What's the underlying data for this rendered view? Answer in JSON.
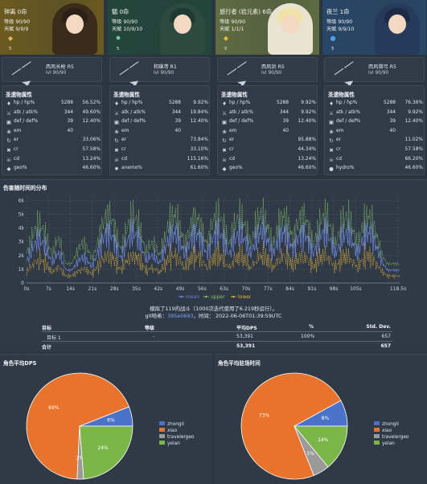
{
  "characters": [
    {
      "name": "钟离 0命",
      "level": "等级 90/90",
      "talent": "天赋 9/9/9",
      "constellation_count": "5",
      "element": "geo",
      "bg": "#6a5a1f",
      "hair": "#2a2018",
      "outfit": "#3a2b1a",
      "weapon": {
        "name": "西风长枪 R5",
        "level": "lvl 90/90"
      },
      "stats_title": "圣遗物属性",
      "stats": [
        {
          "icon": "hp-icon",
          "label": "hp / hp%",
          "v1": "5288",
          "v2": "56.52%"
        },
        {
          "icon": "atk-icon",
          "label": "atk / atk%",
          "v1": "344",
          "v2": "49.60%"
        },
        {
          "icon": "def-icon",
          "label": "def / def%",
          "v1": "39",
          "v2": "12.40%"
        },
        {
          "icon": "em-icon",
          "label": "em",
          "v1": "40",
          "v2": ""
        },
        {
          "icon": "er-icon",
          "label": "er",
          "v1": "",
          "v2": "33.06%"
        },
        {
          "icon": "cr-icon",
          "label": "cr",
          "v1": "",
          "v2": "57.58%"
        },
        {
          "icon": "cd-icon",
          "label": "cd",
          "v1": "",
          "v2": "13.24%"
        },
        {
          "icon": "geo-icon",
          "label": "geo%",
          "v1": "",
          "v2": "46.60%"
        }
      ]
    },
    {
      "name": "魈 0命",
      "level": "等级 90/90",
      "talent": "天赋 10/9/10",
      "constellation_count": "5",
      "element": "anemo",
      "bg": "#23463a",
      "hair": "#1d3a33",
      "outfit": "#2c4a3e",
      "weapon": {
        "name": "和璞鸢 R1",
        "level": "lvl 90/90"
      },
      "stats_title": "圣遗物属性",
      "stats": [
        {
          "icon": "hp-icon",
          "label": "hp / hp%",
          "v1": "5288",
          "v2": "9.92%"
        },
        {
          "icon": "atk-icon",
          "label": "atk / atk%",
          "v1": "344",
          "v2": "19.84%"
        },
        {
          "icon": "def-icon",
          "label": "def / def%",
          "v1": "39",
          "v2": "12.40%"
        },
        {
          "icon": "em-icon",
          "label": "em",
          "v1": "40",
          "v2": ""
        },
        {
          "icon": "er-icon",
          "label": "er",
          "v1": "",
          "v2": "73.84%"
        },
        {
          "icon": "cr-icon",
          "label": "cr",
          "v1": "",
          "v2": "33.10%"
        },
        {
          "icon": "cd-icon",
          "label": "cd",
          "v1": "",
          "v2": "115.16%"
        },
        {
          "icon": "anemo-icon",
          "label": "anemo%",
          "v1": "",
          "v2": "61.60%"
        }
      ]
    },
    {
      "name": "旅行者 (岩元素) 6命",
      "level": "等级 90/90",
      "talent": "天赋 1/1/1",
      "constellation_count": "5",
      "element": "geo",
      "bg": "#5f6b40",
      "hair": "#f1e2a6",
      "outfit": "#e9e3d2",
      "weapon": {
        "name": "西风剑 R5",
        "level": "lvl 90/90"
      },
      "stats_title": "圣遗物属性",
      "stats": [
        {
          "icon": "hp-icon",
          "label": "hp / hp%",
          "v1": "5288",
          "v2": "9.92%"
        },
        {
          "icon": "atk-icon",
          "label": "atk / atk%",
          "v1": "344",
          "v2": "9.92%"
        },
        {
          "icon": "def-icon",
          "label": "def / def%",
          "v1": "39",
          "v2": "12.40%"
        },
        {
          "icon": "em-icon",
          "label": "em",
          "v1": "40",
          "v2": ""
        },
        {
          "icon": "er-icon",
          "label": "er",
          "v1": "",
          "v2": "95.88%"
        },
        {
          "icon": "cr-icon",
          "label": "cr",
          "v1": "",
          "v2": "44.34%"
        },
        {
          "icon": "cd-icon",
          "label": "cd",
          "v1": "",
          "v2": "13.24%"
        },
        {
          "icon": "geo-icon",
          "label": "geo%",
          "v1": "",
          "v2": "46.60%"
        }
      ]
    },
    {
      "name": "夜兰 1命",
      "level": "等级 90/90",
      "talent": "天赋 9/9/10",
      "constellation_count": "5",
      "element": "hydro",
      "bg": "#284766",
      "hair": "#1d2a44",
      "outfit": "#263a5c",
      "weapon": {
        "name": "西风猎弓 R5",
        "level": "lvl 90/90"
      },
      "stats_title": "圣遗物属性",
      "stats": [
        {
          "icon": "hp-icon",
          "label": "hp / hp%",
          "v1": "5288",
          "v2": "76.36%"
        },
        {
          "icon": "atk-icon",
          "label": "atk / atk%",
          "v1": "344",
          "v2": "9.92%"
        },
        {
          "icon": "def-icon",
          "label": "def / def%",
          "v1": "39",
          "v2": "12.40%"
        },
        {
          "icon": "em-icon",
          "label": "em",
          "v1": "40",
          "v2": ""
        },
        {
          "icon": "er-icon",
          "label": "er",
          "v1": "",
          "v2": "11.02%"
        },
        {
          "icon": "cr-icon",
          "label": "cr",
          "v1": "",
          "v2": "57.58%"
        },
        {
          "icon": "cd-icon",
          "label": "cd",
          "v1": "",
          "v2": "66.20%"
        },
        {
          "icon": "hydro-icon",
          "label": "hydro%",
          "v1": "",
          "v2": "46.60%"
        }
      ]
    }
  ],
  "distribution": {
    "title": "伤害随时间的分布",
    "summary_line1": "模拟了119的战斗（1000次迭代使用了6.219秒运行）。",
    "summary_prefix": "git哈希：",
    "summary_hash": "395e0693",
    "summary_suffix": "，时间：  2022-06-06T01:39:59UTC"
  },
  "results_table": {
    "headers": [
      "目标",
      "等级",
      "平均DPS",
      "%",
      "Std. Dev."
    ],
    "rows": [
      [
        "目标 1",
        "",
        "53,391",
        "100%",
        "657"
      ]
    ],
    "total": [
      "合计",
      "",
      "53,391",
      "",
      "657"
    ]
  },
  "pie_dps": {
    "title": "角色平均DPS",
    "legend": [
      "zhongli",
      "xiao",
      "travelergeo",
      "yelan"
    ],
    "values": [
      6,
      69,
      2,
      24
    ],
    "labels": [
      "6%",
      "69%",
      "2%",
      "24%"
    ]
  },
  "pie_field": {
    "title": "角色平均驻场时间",
    "legend": [
      "zhongli",
      "xiao",
      "travelergeo",
      "yelan"
    ],
    "values": [
      8,
      73,
      5,
      14
    ],
    "labels": [
      "8%",
      "73%",
      "5%",
      "14%"
    ]
  },
  "colors": {
    "zhongli": "#4a72c8",
    "xiao": "#e8732c",
    "travelergeo": "#9a9a9a",
    "yelan": "#7ab648",
    "mean": "#6d82d6",
    "upper": "#8cc36e",
    "lower": "#e6b23c",
    "geo": "#e8b847",
    "anemo": "#6fd5b8",
    "hydro": "#4fa3f0"
  },
  "chart_data": {
    "type": "line",
    "title": "",
    "xlabel": "",
    "ylabel": "",
    "x_ticks": [
      "0s",
      "7s",
      "14s",
      "21s",
      "28s",
      "35s",
      "42s",
      "49s",
      "56s",
      "63s",
      "70s",
      "77s",
      "84s",
      "91s",
      "98s",
      "105s",
      "118.5s"
    ],
    "y_ticks": [
      "0",
      "1k",
      "2k",
      "3k",
      "4k",
      "5k",
      "6k"
    ],
    "ylim": [
      0,
      6200
    ],
    "xlim": [
      0,
      119
    ],
    "legend": [
      "mean",
      "upper",
      "lower"
    ],
    "legend_position": "below",
    "grid": true,
    "burst_centers": [
      4,
      10,
      18,
      26,
      34,
      40,
      47,
      54,
      61,
      68,
      75,
      82,
      88,
      95,
      102,
      109
    ],
    "burst_widths": [
      4,
      2,
      3,
      4,
      4,
      3,
      4,
      4,
      4,
      4,
      4,
      4,
      4,
      4,
      4,
      4
    ],
    "burst_peaks_mean": [
      3500,
      2100,
      1700,
      4400,
      4300,
      1900,
      4300,
      4300,
      4400,
      4200,
      4400,
      4300,
      4300,
      4400,
      4200,
      4300
    ],
    "burst_peaks_upper": [
      4500,
      3000,
      2600,
      5600,
      5400,
      2600,
      5500,
      5300,
      5600,
      5300,
      5500,
      5400,
      5500,
      5500,
      5300,
      5400
    ],
    "baseline": 1400
  }
}
